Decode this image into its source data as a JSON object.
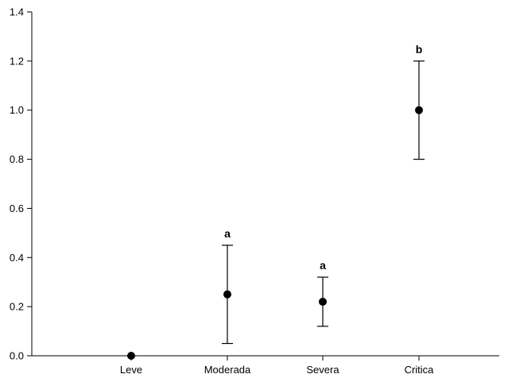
{
  "chart_data": {
    "type": "scatter",
    "title": "",
    "xlabel": "",
    "ylabel": "",
    "ylim": [
      0,
      1.4
    ],
    "yticks": [
      0.0,
      0.2,
      0.4,
      0.6,
      0.8,
      1.0,
      1.2,
      1.4
    ],
    "ytick_labels": [
      "0.0",
      "0.2",
      "0.4",
      "0.6",
      "0.8",
      "1.0",
      "1.2",
      "1.4"
    ],
    "categories": [
      "Leve",
      "Moderada",
      "Severa",
      "Critica"
    ],
    "points": [
      {
        "category": "Leve",
        "value": 0.0,
        "err_low": 0.0,
        "err_high": 0.0,
        "letter": ""
      },
      {
        "category": "Moderada",
        "value": 0.25,
        "err_low": 0.05,
        "err_high": 0.45,
        "letter": "a"
      },
      {
        "category": "Severa",
        "value": 0.22,
        "err_low": 0.12,
        "err_high": 0.32,
        "letter": "a"
      },
      {
        "category": "Critica",
        "value": 1.0,
        "err_low": 0.8,
        "err_high": 1.2,
        "letter": "b"
      }
    ],
    "grid": false,
    "legend": "none",
    "marker_color": "#000000",
    "axis_color": "#000000"
  }
}
